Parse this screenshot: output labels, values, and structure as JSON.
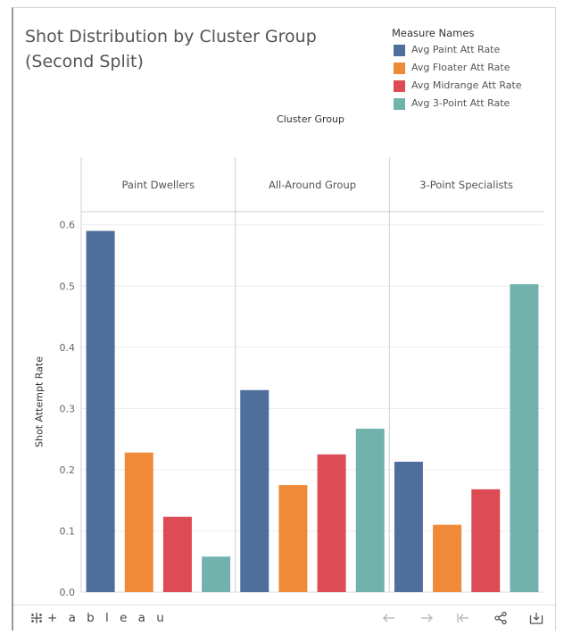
{
  "title": {
    "line1": "Shot Distribution by Cluster Group",
    "line2": "(Second Split)"
  },
  "legend": {
    "title": "Measure Names",
    "items": [
      {
        "label": "Avg Paint Att Rate",
        "color": "#4e6f9c"
      },
      {
        "label": "Avg Floater Att Rate",
        "color": "#ef8a38"
      },
      {
        "label": "Avg Midrange Att Rate",
        "color": "#dd4c55"
      },
      {
        "label": "Avg 3-Point Att Rate",
        "color": "#72b2ac"
      }
    ]
  },
  "chart_data": {
    "type": "bar",
    "title": "Shot Distribution by Cluster Group (Second Split)",
    "column_header": "Cluster Group",
    "ylabel": "Shot Attempt Rate",
    "xlabel": "",
    "ylim": [
      0,
      0.62
    ],
    "yticks": [
      "0.0",
      "0.1",
      "0.2",
      "0.3",
      "0.4",
      "0.5",
      "0.6"
    ],
    "categories": [
      "Paint Dwellers",
      "All-Around Group",
      "3-Point Specialists"
    ],
    "series": [
      {
        "name": "Avg Paint Att Rate",
        "color": "#4e6f9c",
        "values": [
          0.59,
          0.33,
          0.213
        ]
      },
      {
        "name": "Avg Floater Att Rate",
        "color": "#ef8a38",
        "values": [
          0.228,
          0.175,
          0.11
        ]
      },
      {
        "name": "Avg Midrange Att Rate",
        "color": "#dd4c55",
        "values": [
          0.123,
          0.225,
          0.168
        ]
      },
      {
        "name": "Avg 3-Point Att Rate",
        "color": "#72b2ac",
        "values": [
          0.058,
          0.267,
          0.503
        ]
      }
    ],
    "gridlines": true,
    "legend_position": "top-right"
  },
  "toolbar": {
    "logo_text": "+ a b l e a u",
    "logo_icon": "tableau-logo-icon",
    "buttons": [
      {
        "name": "undo-button",
        "icon": "undo-icon"
      },
      {
        "name": "redo-button",
        "icon": "redo-icon"
      },
      {
        "name": "revert-button",
        "icon": "revert-icon"
      },
      {
        "name": "share-button",
        "icon": "share-icon"
      },
      {
        "name": "download-button",
        "icon": "download-icon"
      }
    ]
  }
}
